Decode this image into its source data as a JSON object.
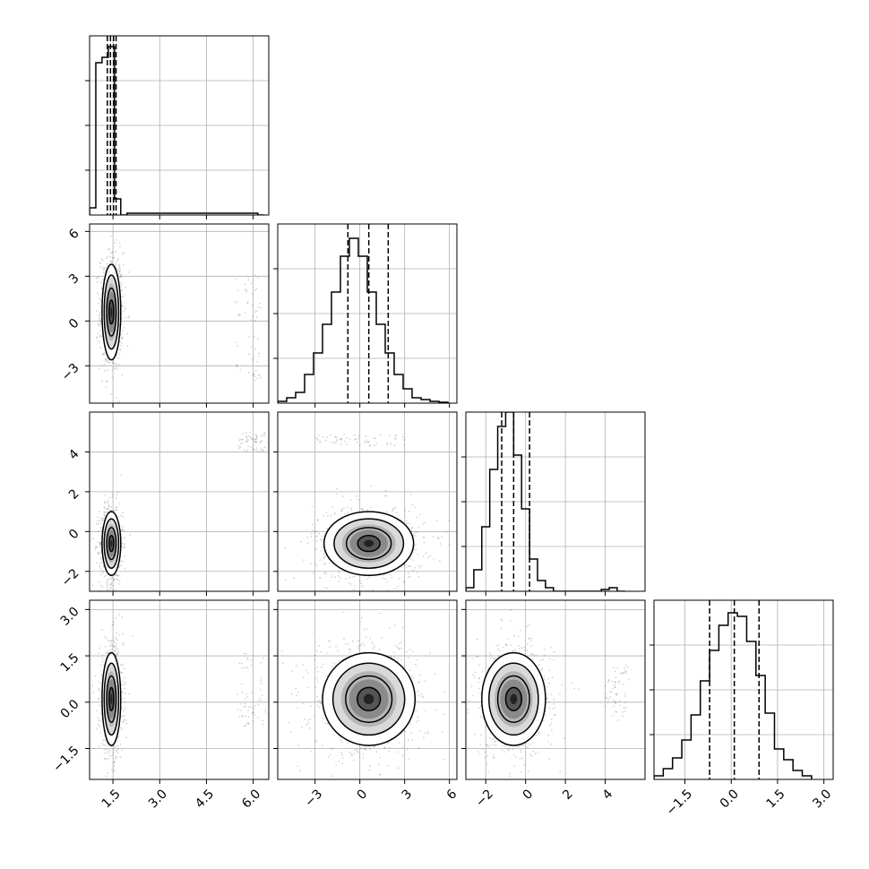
{
  "chart_data": {
    "type": "corner",
    "variables": [
      {
        "range": [
          0.75,
          6.5
        ],
        "ticks": [
          1.5,
          3.0,
          4.5,
          6.0
        ],
        "tick_labels": [
          "1.5",
          "3.0",
          "4.5",
          "6.0"
        ],
        "quantiles": [
          1.32,
          1.42,
          1.52,
          1.6
        ],
        "hist": {
          "bins": [
            0.75,
            0.95,
            1.15,
            1.35,
            1.55,
            1.75,
            1.95,
            6.15,
            6.35
          ],
          "counts": [
            0.04,
            0.85,
            0.88,
            0.94,
            0.09,
            0.0,
            0.01,
            0.0
          ]
        }
      },
      {
        "range": [
          -5.5,
          6.5
        ],
        "ticks": [
          -3,
          0,
          3,
          6
        ],
        "tick_labels": [
          "−3",
          "0",
          "3",
          "6"
        ],
        "quantiles": [
          -0.8,
          0.6,
          1.9
        ],
        "hist": {
          "bins": [
            -5.5,
            -4.9,
            -4.3,
            -3.7,
            -3.1,
            -2.5,
            -1.9,
            -1.3,
            -0.7,
            -0.1,
            0.5,
            1.1,
            1.7,
            2.3,
            2.9,
            3.5,
            4.1,
            4.7,
            5.3,
            5.9
          ],
          "counts": [
            0.01,
            0.03,
            0.06,
            0.16,
            0.28,
            0.44,
            0.62,
            0.82,
            0.92,
            0.82,
            0.62,
            0.44,
            0.28,
            0.16,
            0.08,
            0.03,
            0.02,
            0.01,
            0.005
          ]
        }
      },
      {
        "range": [
          -3.0,
          6.0
        ],
        "ticks": [
          -2,
          0,
          2,
          4
        ],
        "tick_labels": [
          "−2",
          "0",
          "2",
          "4"
        ],
        "quantiles": [
          -1.2,
          -0.6,
          0.2
        ],
        "hist": {
          "bins": [
            -3.0,
            -2.6,
            -2.2,
            -1.8,
            -1.4,
            -1.0,
            -0.6,
            -0.2,
            0.2,
            0.6,
            1.0,
            1.4,
            1.8,
            2.2,
            2.6,
            3.0,
            3.4,
            3.8,
            4.2,
            4.6,
            5.0
          ],
          "counts": [
            0.02,
            0.12,
            0.36,
            0.68,
            0.92,
            1.0,
            0.76,
            0.46,
            0.18,
            0.06,
            0.02,
            0.0,
            0.0,
            0.0,
            0.0,
            0.0,
            0.0,
            0.01,
            0.02,
            0.0
          ]
        }
      },
      {
        "range": [
          -2.5,
          3.3
        ],
        "ticks": [
          -1.5,
          0.0,
          1.5,
          3.0
        ],
        "tick_labels": [
          "−1.5",
          "0.0",
          "1.5",
          "3.0"
        ],
        "quantiles": [
          -0.7,
          0.1,
          0.9
        ],
        "hist": {
          "bins": [
            -2.5,
            -2.2,
            -1.9,
            -1.6,
            -1.3,
            -1.0,
            -0.7,
            -0.4,
            -0.1,
            0.2,
            0.5,
            0.8,
            1.1,
            1.4,
            1.7,
            2.0,
            2.3,
            2.6
          ],
          "counts": [
            0.02,
            0.06,
            0.12,
            0.22,
            0.36,
            0.55,
            0.72,
            0.86,
            0.93,
            0.91,
            0.77,
            0.58,
            0.37,
            0.17,
            0.11,
            0.05,
            0.02
          ]
        }
      }
    ],
    "pairs": [
      {
        "row": 1,
        "col": 0,
        "mean": [
          1.45,
          0.6
        ],
        "sigma": [
          0.15,
          1.6
        ],
        "outlier_cluster": {
          "x": [
            5.4,
            6.3
          ],
          "y": [
            -4.0,
            3.5
          ]
        }
      },
      {
        "row": 2,
        "col": 0,
        "mean": [
          1.45,
          -0.6
        ],
        "sigma": [
          0.15,
          0.8
        ],
        "outlier_cluster": {
          "x": [
            5.5,
            6.4
          ],
          "y": [
            4.0,
            5.0
          ]
        }
      },
      {
        "row": 2,
        "col": 1,
        "mean": [
          0.6,
          -0.6
        ],
        "sigma": [
          1.5,
          0.8
        ],
        "outlier_cluster": {
          "x": [
            -3.0,
            3.0
          ],
          "y": [
            4.3,
            4.9
          ]
        }
      },
      {
        "row": 3,
        "col": 0,
        "mean": [
          1.45,
          0.1
        ],
        "sigma": [
          0.15,
          0.75
        ],
        "outlier_cluster": {
          "x": [
            5.5,
            6.4
          ],
          "y": [
            -0.8,
            1.6
          ]
        }
      },
      {
        "row": 3,
        "col": 1,
        "mean": [
          0.6,
          0.1
        ],
        "sigma": [
          1.55,
          0.75
        ],
        "outlier_cluster": {
          "x": [
            -3.0,
            3.0
          ],
          "y": [
            -1.8,
            2.0
          ]
        }
      },
      {
        "row": 3,
        "col": 2,
        "mean": [
          -0.6,
          0.1
        ],
        "sigma": [
          0.8,
          0.75
        ],
        "outlier_cluster": {
          "x": [
            4.0,
            5.2
          ],
          "y": [
            -0.6,
            1.2
          ]
        }
      }
    ],
    "grid": true
  }
}
